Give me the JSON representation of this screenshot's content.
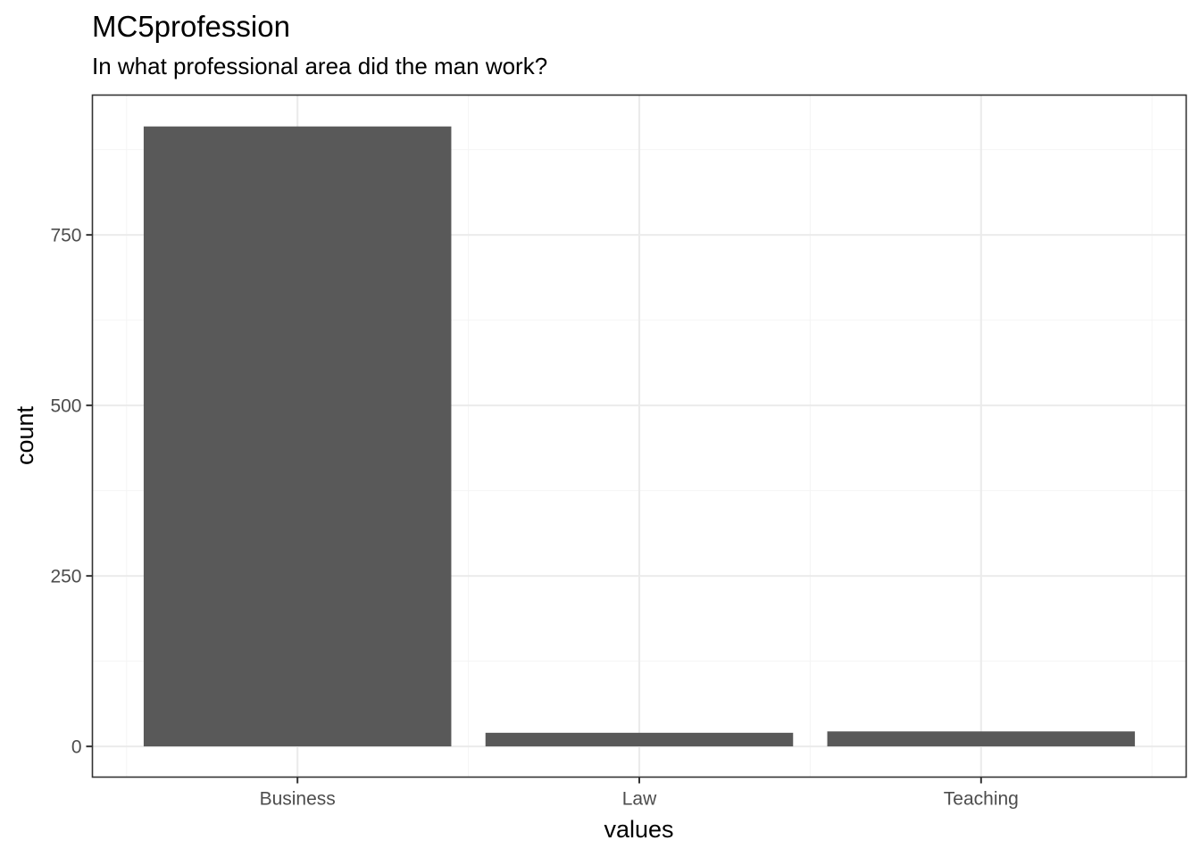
{
  "chart_data": {
    "type": "bar",
    "title": "MC5profession",
    "subtitle": "In what professional area did the man work?",
    "xlabel": "values",
    "ylabel": "count",
    "categories": [
      "Business",
      "Law",
      "Teaching"
    ],
    "values": [
      909,
      20,
      22
    ],
    "ylim": [
      -45,
      955
    ],
    "yticks": [
      0,
      250,
      500,
      750
    ],
    "ytick_labels": [
      "0",
      "250",
      "500",
      "750"
    ],
    "grid": true,
    "bar_color": "#595959",
    "background": "#ffffff",
    "grid_major_color": "#ebebeb",
    "grid_minor_color": "#f5f5f5",
    "panel_border_color": "#333333"
  }
}
